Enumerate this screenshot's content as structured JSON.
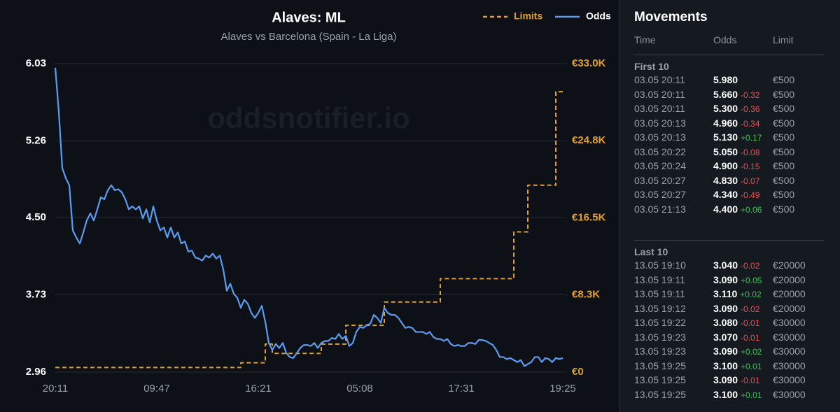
{
  "chart_data": {
    "type": "line",
    "title": "Alaves: ML",
    "subtitle": "Alaves vs Barcelona (Spain - La Liga)",
    "watermark": "oddsnotifier.io",
    "legend": "top-right",
    "grid": true,
    "categories": [
      "20:11",
      null,
      null,
      null,
      null,
      null,
      null,
      null,
      null,
      null,
      null,
      null,
      null,
      null,
      null,
      null,
      null,
      null,
      null,
      null,
      null,
      null,
      null,
      null,
      null,
      null,
      null,
      null,
      null,
      "09:47",
      null,
      null,
      null,
      null,
      null,
      null,
      null,
      null,
      null,
      null,
      null,
      null,
      null,
      null,
      null,
      null,
      null,
      null,
      null,
      null,
      null,
      null,
      null,
      null,
      null,
      null,
      null,
      null,
      "16:21",
      null,
      null,
      null,
      null,
      null,
      null,
      null,
      null,
      null,
      null,
      null,
      null,
      null,
      null,
      null,
      null,
      null,
      null,
      null,
      null,
      null,
      null,
      null,
      null,
      null,
      null,
      null,
      null,
      "05:08",
      null,
      null,
      null,
      null,
      null,
      null,
      null,
      null,
      null,
      null,
      null,
      null,
      null,
      null,
      null,
      null,
      null,
      null,
      null,
      null,
      null,
      null,
      null,
      null,
      null,
      null,
      null,
      null,
      "17:31",
      null,
      null,
      null,
      null,
      null,
      null,
      null,
      null,
      null,
      null,
      null,
      null,
      null,
      null,
      null,
      null,
      null,
      null,
      null,
      null,
      null,
      null,
      null,
      null,
      null,
      null,
      null,
      null,
      "19:25"
    ],
    "ylim": [
      2.96,
      6.03
    ],
    "yticks": [
      2.96,
      3.73,
      {
        "value": 4.5,
        "label": "4.50"
      },
      5.26,
      6.03
    ],
    "y2lim": [
      0,
      33000
    ],
    "y2ticks": [
      {
        "value": 0,
        "label": "€0"
      },
      {
        "value": 8250,
        "label": "€8.3K"
      },
      {
        "value": 16500,
        "label": "€16.5K"
      },
      {
        "value": 24750,
        "label": "€24.8K"
      },
      {
        "value": 33000,
        "label": "€33.0K"
      }
    ],
    "series": [
      {
        "name": "Limits",
        "color": "#e0a030",
        "axis": "y2",
        "dashed": true,
        "step": true,
        "values": [
          500,
          500,
          500,
          500,
          500,
          500,
          500,
          500,
          500,
          500,
          500,
          500,
          500,
          500,
          500,
          500,
          500,
          500,
          500,
          500,
          500,
          500,
          500,
          500,
          500,
          500,
          500,
          500,
          500,
          500,
          500,
          500,
          500,
          500,
          500,
          500,
          500,
          500,
          500,
          500,
          500,
          500,
          500,
          500,
          500,
          500,
          500,
          500,
          500,
          500,
          500,
          500,
          500,
          1000,
          1000,
          1000,
          1000,
          1000,
          1000,
          1000,
          3000,
          3000,
          2000,
          2000,
          2000,
          2000,
          2000,
          2000,
          2000,
          2000,
          2000,
          2000,
          2000,
          2000,
          2000,
          2000,
          3000,
          3000,
          3000,
          3000,
          3000,
          3000,
          3000,
          5000,
          5000,
          5000,
          5000,
          5000,
          5000,
          5000,
          5000,
          5000,
          5000,
          5000,
          7500,
          7500,
          7500,
          7500,
          7500,
          7500,
          7500,
          7500,
          7500,
          7500,
          7500,
          7500,
          7500,
          7500,
          7500,
          7500,
          10000,
          10000,
          10000,
          10000,
          10000,
          10000,
          10000,
          10000,
          10000,
          10000,
          10000,
          10000,
          10000,
          10000,
          10000,
          10000,
          10000,
          10000,
          10000,
          10000,
          10000,
          15000,
          15000,
          15000,
          15000,
          20000,
          20000,
          20000,
          20000,
          20000,
          20000,
          20000,
          20000,
          30000,
          30000,
          30000
        ]
      },
      {
        "name": "Odds",
        "color": "#5b9cf0",
        "values": [
          5.99,
          5.55,
          4.99,
          4.89,
          4.82,
          4.37,
          4.3,
          4.24,
          4.35,
          4.47,
          4.54,
          4.47,
          4.58,
          4.7,
          4.68,
          4.77,
          4.82,
          4.77,
          4.78,
          4.75,
          4.68,
          4.58,
          4.61,
          4.58,
          4.61,
          4.49,
          4.58,
          4.45,
          4.61,
          4.47,
          4.37,
          4.4,
          4.3,
          4.4,
          4.3,
          4.35,
          4.24,
          4.26,
          4.16,
          4.17,
          4.1,
          4.09,
          4.07,
          4.12,
          4.1,
          4.14,
          4.09,
          4.12,
          3.98,
          3.77,
          3.84,
          3.74,
          3.7,
          3.6,
          3.68,
          3.64,
          3.55,
          3.5,
          3.55,
          3.62,
          3.46,
          3.25,
          3.18,
          3.24,
          3.2,
          3.25,
          3.15,
          3.11,
          3.1,
          3.15,
          3.2,
          3.23,
          3.23,
          3.22,
          3.25,
          3.2,
          3.25,
          3.27,
          3.27,
          3.3,
          3.29,
          3.34,
          3.29,
          3.32,
          3.22,
          3.25,
          3.36,
          3.41,
          3.4,
          3.43,
          3.44,
          3.53,
          3.5,
          3.45,
          3.6,
          3.55,
          3.53,
          3.53,
          3.5,
          3.45,
          3.4,
          3.41,
          3.4,
          3.36,
          3.36,
          3.36,
          3.34,
          3.36,
          3.31,
          3.29,
          3.29,
          3.27,
          3.29,
          3.24,
          3.22,
          3.23,
          3.22,
          3.22,
          3.25,
          3.25,
          3.24,
          3.28,
          3.28,
          3.27,
          3.25,
          3.23,
          3.18,
          3.11,
          3.11,
          3.09,
          3.1,
          3.08,
          3.06,
          3.08,
          3.02,
          3.04,
          3.06,
          3.11,
          3.11,
          3.06,
          3.1,
          3.09,
          3.06,
          3.1,
          3.09,
          3.1
        ]
      }
    ]
  },
  "movements": {
    "title": "Movements",
    "columns": [
      "Time",
      "Odds",
      "Limit"
    ],
    "sections": [
      {
        "label": "First 10",
        "rows": [
          {
            "time": "03.05 20:11",
            "odds": "5.980",
            "limit": "€500"
          },
          {
            "time": "03.05 20:11",
            "odds": "5.660",
            "change": "-0.32",
            "limit": "€500"
          },
          {
            "time": "03.05 20:11",
            "odds": "5.300",
            "change": "-0.36",
            "limit": "€500"
          },
          {
            "time": "03.05 20:13",
            "odds": "4.960",
            "change": "-0.34",
            "limit": "€500"
          },
          {
            "time": "03.05 20:13",
            "odds": "5.130",
            "change": "+0.17",
            "limit": "€500"
          },
          {
            "time": "03.05 20:22",
            "odds": "5.050",
            "change": "-0.08",
            "limit": "€500"
          },
          {
            "time": "03.05 20:24",
            "odds": "4.900",
            "change": "-0.15",
            "limit": "€500"
          },
          {
            "time": "03.05 20:27",
            "odds": "4.830",
            "change": "-0.07",
            "limit": "€500"
          },
          {
            "time": "03.05 20:27",
            "odds": "4.340",
            "change": "-0.49",
            "limit": "€500"
          },
          {
            "time": "03.05 21:13",
            "odds": "4.400",
            "change": "+0.06",
            "limit": "€500"
          }
        ]
      },
      {
        "label": "Last 10",
        "rows": [
          {
            "time": "13.05 19:10",
            "odds": "3.040",
            "change": "-0.02",
            "limit": "€20000"
          },
          {
            "time": "13.05 19:11",
            "odds": "3.090",
            "change": "+0.05",
            "limit": "€20000"
          },
          {
            "time": "13.05 19:11",
            "odds": "3.110",
            "change": "+0.02",
            "limit": "€20000"
          },
          {
            "time": "13.05 19:12",
            "odds": "3.090",
            "change": "-0.02",
            "limit": "€20000"
          },
          {
            "time": "13.05 19:22",
            "odds": "3.080",
            "change": "-0.01",
            "limit": "€30000"
          },
          {
            "time": "13.05 19:23",
            "odds": "3.070",
            "change": "-0.01",
            "limit": "€30000"
          },
          {
            "time": "13.05 19:23",
            "odds": "3.090",
            "change": "+0.02",
            "limit": "€30000"
          },
          {
            "time": "13.05 19:25",
            "odds": "3.100",
            "change": "+0.01",
            "limit": "€30000"
          },
          {
            "time": "13.05 19:25",
            "odds": "3.090",
            "change": "-0.01",
            "limit": "€30000"
          },
          {
            "time": "13.05 19:25",
            "odds": "3.100",
            "change": "+0.01",
            "limit": "€30000"
          }
        ]
      }
    ]
  }
}
